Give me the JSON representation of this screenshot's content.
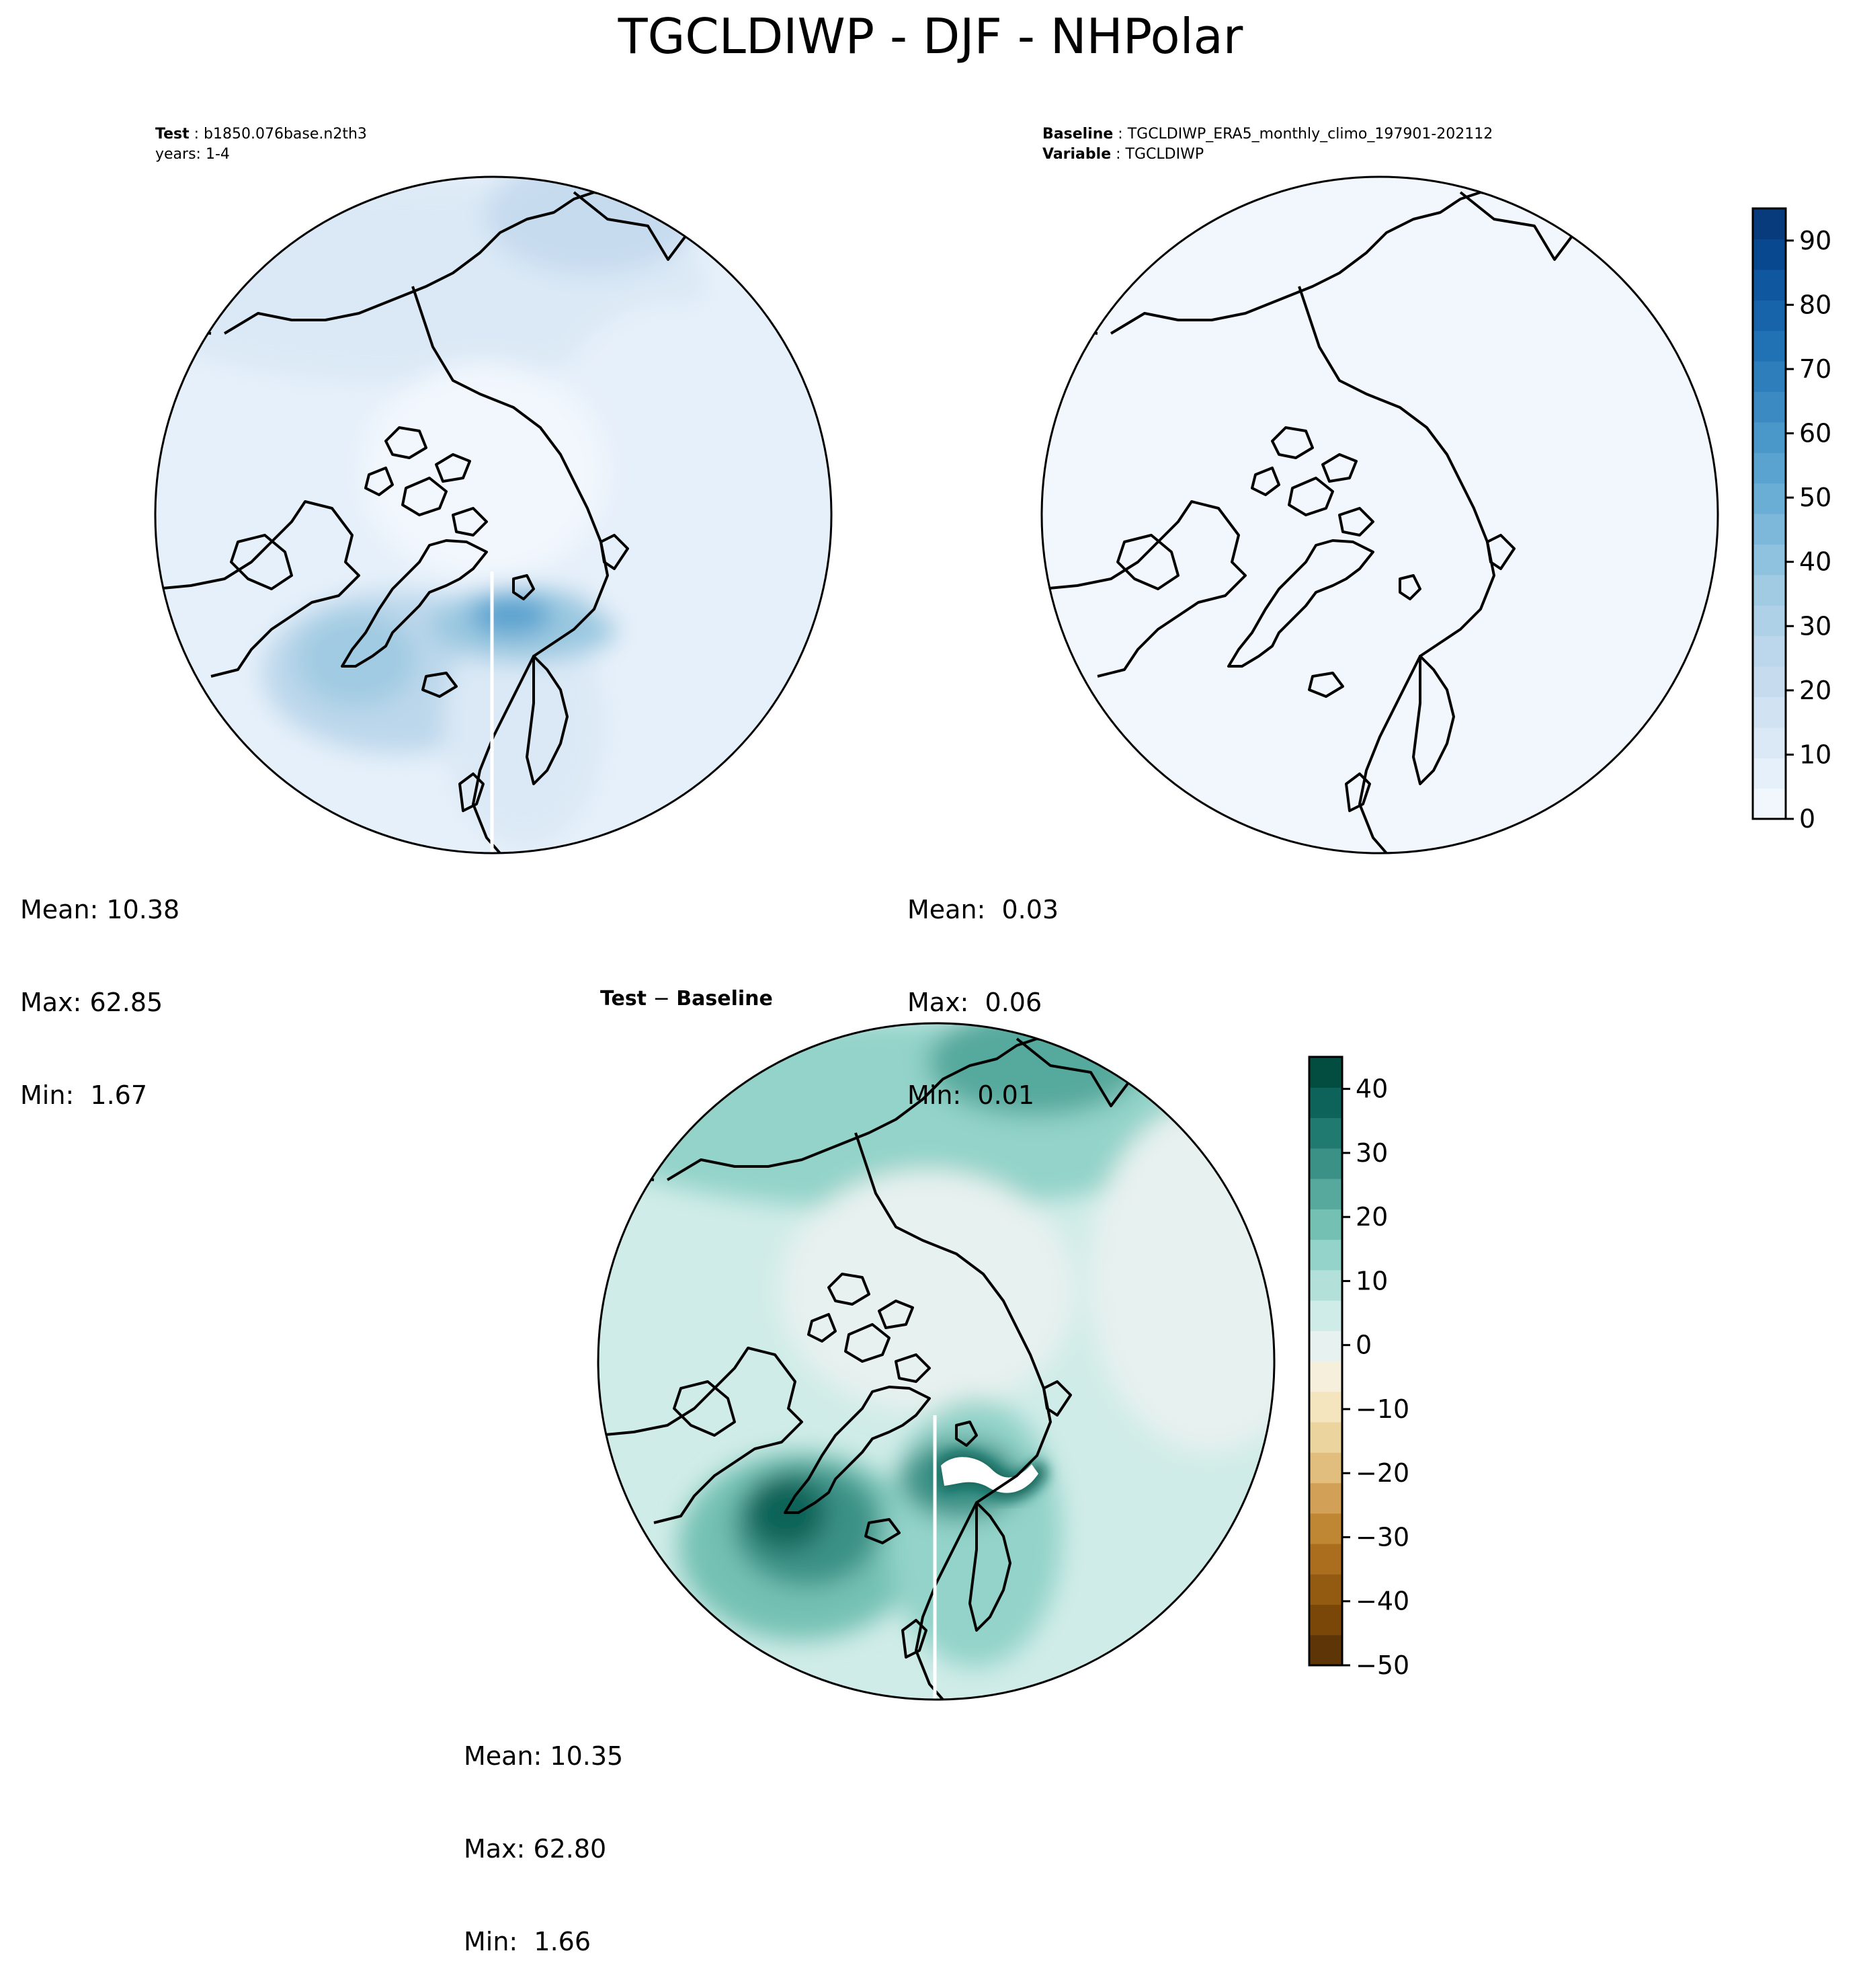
{
  "figure": {
    "title": "TGCLDIWP - DJF - NHPolar"
  },
  "panels": {
    "test": {
      "label": "Test",
      "case": "b1850.076base.n2th3",
      "years": "years: 1-4",
      "stats": {
        "mean": "Mean: 10.38",
        "max": "Max: 62.85",
        "min": "Min:  1.67"
      }
    },
    "baseline": {
      "label": "Baseline",
      "case": "TGCLDIWP_ERA5_monthly_climo_197901-202112",
      "var_label": "Variable",
      "variable": "TGCLDIWP",
      "stats": {
        "mean": "Mean:  0.03",
        "max": "Max:  0.06",
        "min": "Min:  0.01"
      }
    },
    "diff": {
      "title_left": "Test",
      "title_sep": " − ",
      "title_right": "Baseline",
      "stats": {
        "mean": "Mean: 10.35",
        "max": "Max: 62.80",
        "min": "Min:  1.66"
      }
    }
  },
  "colorbars": {
    "field": {
      "colormap": "Blues",
      "range": [
        0,
        95
      ],
      "ticks": [
        "0",
        "10",
        "20",
        "30",
        "40",
        "50",
        "60",
        "70",
        "80",
        "90"
      ],
      "colors": [
        "#f2f7fd",
        "#e6f0fa",
        "#dbe9f6",
        "#d1e2f3",
        "#c7dbef",
        "#bcd7eb",
        "#afd1e7",
        "#a0cbe2",
        "#8fc2de",
        "#7db8da",
        "#6aaed6",
        "#5aa2cf",
        "#4a97c9",
        "#3b8bc2",
        "#2e7ebc",
        "#2171b5",
        "#1864aa",
        "#0f579f",
        "#08488e",
        "#083b7c"
      ]
    },
    "diff": {
      "colormap": "BrBG",
      "range": [
        -50,
        45
      ],
      "ticks": [
        "−50",
        "−40",
        "−30",
        "−20",
        "−10",
        "0",
        "10",
        "20",
        "30",
        "40"
      ],
      "colors": [
        "#5d3507",
        "#7a4709",
        "#935a12",
        "#aa6e1e",
        "#bf8633",
        "#d2a157",
        "#e1be7e",
        "#ecd49f",
        "#f4e5bf",
        "#f6efdc",
        "#e7f1ef",
        "#d0ece8",
        "#b3e1da",
        "#93d3c9",
        "#74c1b4",
        "#57a99d",
        "#3b9186",
        "#207a70",
        "#0d6359",
        "#024c40"
      ]
    }
  }
}
